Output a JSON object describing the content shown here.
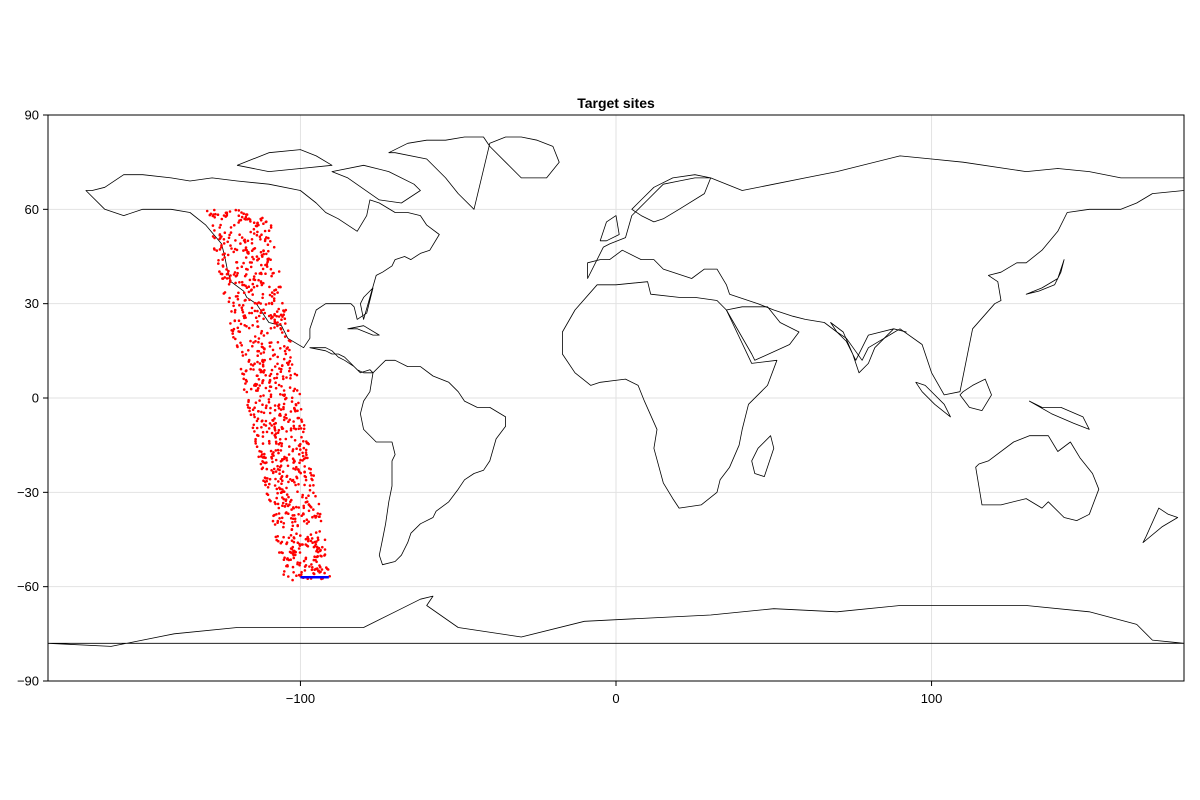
{
  "chart_data": {
    "type": "scatter",
    "title": "Target sites",
    "xlabel": "",
    "ylabel": "",
    "xlim": [
      -180,
      180
    ],
    "ylim": [
      -90,
      90
    ],
    "xticks": [
      -100,
      0,
      100
    ],
    "xtick_labels": [
      "−100",
      "0",
      "100"
    ],
    "yticks": [
      90,
      60,
      30,
      0,
      -30,
      -60,
      -90
    ],
    "ytick_labels": [
      "90",
      "60",
      "30",
      "0",
      "−30",
      "−60",
      "−90"
    ],
    "grid": true,
    "colors": {
      "points": "#ff0000",
      "track": "#0000ff",
      "coastline": "#000000",
      "grid": "#e2e2e2"
    },
    "point_region": {
      "description": "random target sites inside a slanted band",
      "north_lat": 60,
      "south_lat": -58,
      "north_lon_range": [
        -130,
        -110
      ],
      "south_lon_range": [
        -105,
        -90
      ],
      "count": 1000
    },
    "track_segment": {
      "lon": [
        -100,
        -91
      ],
      "lat": [
        -57,
        -57
      ]
    },
    "land": [
      {
        "name": "north-america",
        "lon": [
          -168,
          -162,
          -156,
          -150,
          -141,
          -135,
          -130,
          -125,
          -124,
          -123,
          -122,
          -118,
          -117,
          -114,
          -110,
          -106,
          -104,
          -99,
          -97,
          -97,
          -95,
          -92,
          -91,
          -88,
          -87,
          -86,
          -84,
          -83,
          -82,
          -79,
          -77,
          -80,
          -81,
          -80,
          -76,
          -74,
          -71,
          -70,
          -67,
          -65,
          -62,
          -59,
          -56,
          -60,
          -62,
          -66,
          -70,
          -75,
          -78,
          -79,
          -82,
          -88,
          -92,
          -95,
          -100,
          -110,
          -120,
          -128,
          -135,
          -141,
          -150,
          -156,
          -162,
          -166,
          -168
        ],
        "lat": [
          66,
          60,
          58,
          60,
          60,
          59,
          55,
          49,
          45,
          40,
          37,
          34,
          32,
          30,
          24,
          23,
          19,
          16,
          19,
          22,
          28,
          30,
          30,
          30,
          30,
          30,
          30,
          29,
          25,
          27,
          35,
          32,
          30,
          25,
          39,
          40,
          42,
          44,
          45,
          44,
          46,
          47,
          52,
          55,
          58,
          59,
          59,
          62,
          63,
          58,
          53,
          57,
          59,
          62,
          66,
          68,
          69,
          70,
          69,
          70,
          71,
          71,
          67,
          66,
          66
        ]
      },
      {
        "name": "central-america",
        "lon": [
          -97,
          -92,
          -90,
          -88,
          -86,
          -84,
          -82,
          -80,
          -77,
          -78,
          -81,
          -83,
          -86,
          -88,
          -90,
          -92,
          -94,
          -97
        ],
        "lat": [
          16,
          15,
          14,
          14,
          13,
          11,
          9,
          8,
          8,
          9,
          8,
          10,
          12,
          13,
          15,
          16,
          16,
          16
        ]
      },
      {
        "name": "south-america",
        "lon": [
          -77,
          -73,
          -70,
          -66,
          -62,
          -58,
          -53,
          -50,
          -48,
          -44,
          -40,
          -35,
          -35,
          -38,
          -40,
          -42,
          -45,
          -48,
          -50,
          -53,
          -57,
          -58,
          -62,
          -65,
          -66,
          -68,
          -70,
          -74,
          -75,
          -74,
          -73,
          -72,
          -71,
          -71,
          -70,
          -71,
          -76,
          -80,
          -81,
          -80,
          -78,
          -77
        ],
        "lat": [
          8,
          12,
          12,
          10,
          10,
          7,
          5,
          2,
          -1,
          -3,
          -3,
          -6,
          -9,
          -13,
          -20,
          -23,
          -24,
          -26,
          -29,
          -33,
          -36,
          -38,
          -40,
          -43,
          -46,
          -50,
          -52,
          -53,
          -50,
          -45,
          -40,
          -33,
          -28,
          -20,
          -18,
          -14,
          -14,
          -10,
          -5,
          -1,
          2,
          8
        ]
      },
      {
        "name": "greenland",
        "lon": [
          -72,
          -66,
          -60,
          -54,
          -48,
          -42,
          -40,
          -35,
          -30,
          -22,
          -18,
          -20,
          -25,
          -30,
          -35,
          -40,
          -45,
          -50,
          -54,
          -60,
          -70,
          -72
        ],
        "lat": [
          78,
          81,
          82,
          82,
          83,
          83,
          80,
          75,
          70,
          70,
          75,
          80,
          82,
          83,
          83,
          81,
          60,
          65,
          70,
          76,
          78,
          78
        ]
      },
      {
        "name": "baffin",
        "lon": [
          -90,
          -80,
          -72,
          -64,
          -62,
          -68,
          -75,
          -85,
          -90
        ],
        "lat": [
          72,
          74,
          72,
          68,
          66,
          62,
          63,
          70,
          72
        ]
      },
      {
        "name": "arctic-islands",
        "lon": [
          -120,
          -110,
          -100,
          -95,
          -90,
          -100,
          -110,
          -120
        ],
        "lat": [
          74,
          78,
          79,
          77,
          74,
          73,
          72,
          74
        ]
      },
      {
        "name": "africa",
        "lon": [
          -17,
          -13,
          -6,
          0,
          10,
          11,
          20,
          25,
          32,
          35,
          43,
          51,
          48,
          42,
          40,
          39,
          36,
          33,
          32,
          27,
          20,
          18,
          15,
          12,
          13,
          9,
          7,
          3,
          -5,
          -8,
          -13,
          -17,
          -17
        ],
        "lat": [
          21,
          28,
          36,
          36,
          37,
          33,
          32,
          32,
          31,
          28,
          11,
          12,
          4,
          -2,
          -10,
          -15,
          -22,
          -26,
          -30,
          -34,
          -35,
          -32,
          -27,
          -16,
          -10,
          -1,
          4,
          6,
          5,
          4,
          8,
          14,
          21
        ]
      },
      {
        "name": "eurasia",
        "lon": [
          -9,
          -9,
          -5,
          -2,
          2,
          8,
          12,
          15,
          18,
          24,
          28,
          32,
          35,
          36,
          45,
          50,
          56,
          60,
          66,
          70,
          73,
          78,
          80,
          90,
          97,
          100,
          104,
          109,
          113,
          120,
          122,
          121,
          118,
          122,
          127,
          130,
          135,
          140,
          143,
          150,
          160,
          165,
          170,
          180,
          180,
          170,
          160,
          150,
          140,
          130,
          110,
          100,
          90,
          70,
          60,
          50,
          40,
          30,
          25,
          20,
          15,
          10,
          5,
          3,
          -2,
          -4,
          -9
        ],
        "lat": [
          38,
          43,
          44,
          44,
          47,
          44,
          44,
          41,
          40,
          38,
          41,
          41,
          36,
          33,
          30,
          28,
          26,
          25,
          24,
          21,
          19,
          12,
          16,
          22,
          17,
          8,
          1,
          2,
          22,
          30,
          31,
          37,
          39,
          40,
          43,
          43,
          47,
          53,
          59,
          60,
          60,
          62,
          65,
          66,
          70,
          70,
          70,
          72,
          73,
          72,
          75,
          76,
          77,
          72,
          70,
          68,
          66,
          70,
          70,
          69,
          68,
          63,
          58,
          51,
          49,
          48,
          38
        ]
      },
      {
        "name": "arabia",
        "lon": [
          35,
          40,
          48,
          52,
          58,
          55,
          44,
          43,
          35
        ],
        "lat": [
          28,
          29,
          29,
          24,
          21,
          17,
          12,
          14,
          28
        ]
      },
      {
        "name": "india",
        "lon": [
          68,
          72,
          75,
          77,
          80,
          82,
          88,
          92,
          88,
          80,
          76,
          73,
          70,
          68
        ],
        "lat": [
          24,
          21,
          14,
          8,
          11,
          16,
          22,
          21,
          22,
          20,
          12,
          18,
          21,
          24
        ]
      },
      {
        "name": "scandinavia",
        "lon": [
          5,
          8,
          12,
          18,
          25,
          30,
          28,
          20,
          15,
          12,
          8,
          5
        ],
        "lat": [
          60,
          63,
          67,
          70,
          71,
          70,
          65,
          60,
          57,
          56,
          58,
          60
        ]
      },
      {
        "name": "britain",
        "lon": [
          -5,
          -3,
          0,
          1,
          -3,
          -5
        ],
        "lat": [
          50,
          56,
          58,
          52,
          50,
          50
        ]
      },
      {
        "name": "japan",
        "lon": [
          130,
          134,
          139,
          141,
          142,
          140,
          135,
          130
        ],
        "lat": [
          33,
          34,
          36,
          40,
          44,
          38,
          35,
          33
        ]
      },
      {
        "name": "borneo",
        "lon": [
          109,
          112,
          116,
          119,
          117,
          113,
          110,
          109
        ],
        "lat": [
          1,
          -3,
          -4,
          1,
          6,
          4,
          2,
          1
        ]
      },
      {
        "name": "sumatra",
        "lon": [
          95,
          98,
          104,
          106,
          101,
          97,
          95
        ],
        "lat": [
          5,
          4,
          -2,
          -6,
          -2,
          2,
          5
        ]
      },
      {
        "name": "new-guinea",
        "lon": [
          131,
          135,
          141,
          148,
          150,
          145,
          138,
          131
        ],
        "lat": [
          -1,
          -3,
          -3,
          -6,
          -10,
          -8,
          -5,
          -1
        ]
      },
      {
        "name": "australia",
        "lon": [
          114,
          116,
          122,
          130,
          135,
          137,
          142,
          146,
          150,
          153,
          151,
          147,
          144,
          140,
          137,
          131,
          126,
          118,
          115,
          114
        ],
        "lat": [
          -22,
          -34,
          -34,
          -32,
          -35,
          -33,
          -38,
          -39,
          -37,
          -29,
          -24,
          -19,
          -14,
          -17,
          -12,
          -12,
          -14,
          -20,
          -21,
          -22
        ]
      },
      {
        "name": "madagascar",
        "lon": [
          44,
          47,
          50,
          49,
          45,
          43,
          44
        ],
        "lat": [
          -24,
          -25,
          -16,
          -12,
          -16,
          -20,
          -24
        ]
      },
      {
        "name": "new-zealand",
        "lon": [
          172,
          175,
          178,
          173,
          167,
          168,
          172
        ],
        "lat": [
          -35,
          -37,
          -38,
          -41,
          -46,
          -44,
          -35
        ]
      },
      {
        "name": "cuba",
        "lon": [
          -85,
          -80,
          -75,
          -77,
          -82,
          -85
        ],
        "lat": [
          22,
          23,
          20,
          20,
          22,
          22
        ]
      },
      {
        "name": "antarctica",
        "lon": [
          -180,
          -160,
          -140,
          -120,
          -100,
          -80,
          -70,
          -62,
          -58,
          -60,
          -50,
          -30,
          -10,
          10,
          30,
          50,
          70,
          90,
          110,
          130,
          150,
          165,
          170,
          180
        ],
        "lat": [
          -78,
          -79,
          -75,
          -73,
          -73,
          -73,
          -68,
          -64,
          -63,
          -66,
          -73,
          -76,
          -71,
          -70,
          -69,
          -67,
          -68,
          -66,
          -66,
          -66,
          -68,
          -72,
          -77,
          -78
        ]
      }
    ]
  }
}
